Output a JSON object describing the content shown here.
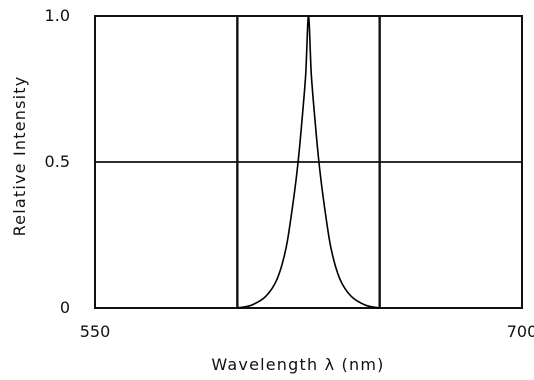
{
  "chart_data": {
    "type": "line",
    "xlabel": "Wavelength λ (nm)",
    "ylabel": "Relative Intensity",
    "xlim": [
      550,
      700
    ],
    "ylim": [
      0,
      1.0
    ],
    "x_ticks": [
      {
        "value": 550,
        "label": "550"
      },
      {
        "value": 700,
        "label": "700"
      }
    ],
    "y_ticks": [
      {
        "value": 0,
        "label": "0"
      },
      {
        "value": 0.5,
        "label": "0.5"
      },
      {
        "value": 1.0,
        "label": "1.0"
      }
    ],
    "grid": {
      "vertical_lines_x": [
        600,
        650
      ],
      "horizontal_lines_y": [
        0.5
      ]
    },
    "series": [
      {
        "x": [
          600,
          605,
          610,
          614,
          617,
          619,
          621,
          622.5,
          624,
          625,
          626,
          627.5,
          629,
          631,
          633,
          636,
          640,
          645,
          650
        ],
        "y": [
          0,
          0.01,
          0.04,
          0.1,
          0.2,
          0.32,
          0.47,
          0.62,
          0.8,
          1.0,
          0.8,
          0.62,
          0.47,
          0.32,
          0.2,
          0.1,
          0.04,
          0.01,
          0
        ],
        "color": "#000000"
      }
    ]
  }
}
